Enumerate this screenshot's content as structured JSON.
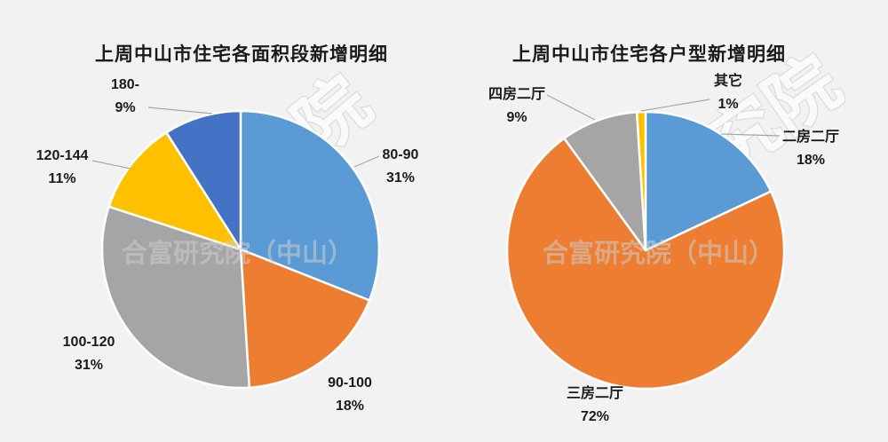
{
  "page": {
    "background": "#F2F2F2"
  },
  "watermark": {
    "center_text": "合富研究院（中山）",
    "diagonal_text": "究院"
  },
  "chart_data": [
    {
      "type": "pie",
      "title": "上周中山市住宅各面积段新增明细",
      "legend": "none",
      "start_angle_deg": 0,
      "direction": "clockwise",
      "label_format": "category + percent",
      "slices": [
        {
          "name": "80-90",
          "value": 31,
          "pct_label": "31%",
          "color": "#5B9BD5"
        },
        {
          "name": "90-100",
          "value": 18,
          "pct_label": "18%",
          "color": "#ED7D31"
        },
        {
          "name": "100-120",
          "value": 31,
          "pct_label": "31%",
          "color": "#A5A5A5"
        },
        {
          "name": "120-144",
          "value": 11,
          "pct_label": "11%",
          "color": "#FFC000"
        },
        {
          "name": "180-",
          "value": 9,
          "pct_label": "9%",
          "color": "#4472C4"
        }
      ]
    },
    {
      "type": "pie",
      "title": "上周中山市住宅各户型新增明细",
      "legend": "none",
      "start_angle_deg": 0,
      "direction": "clockwise",
      "label_format": "category + percent",
      "slices": [
        {
          "name": "二房二厅",
          "value": 18,
          "pct_label": "18%",
          "color": "#5B9BD5"
        },
        {
          "name": "三房二厅",
          "value": 72,
          "pct_label": "72%",
          "color": "#ED7D31"
        },
        {
          "name": "四房二厅",
          "value": 9,
          "pct_label": "9%",
          "color": "#A5A5A5"
        },
        {
          "name": "其它",
          "value": 1,
          "pct_label": "1%",
          "color": "#FFC000"
        }
      ]
    }
  ]
}
